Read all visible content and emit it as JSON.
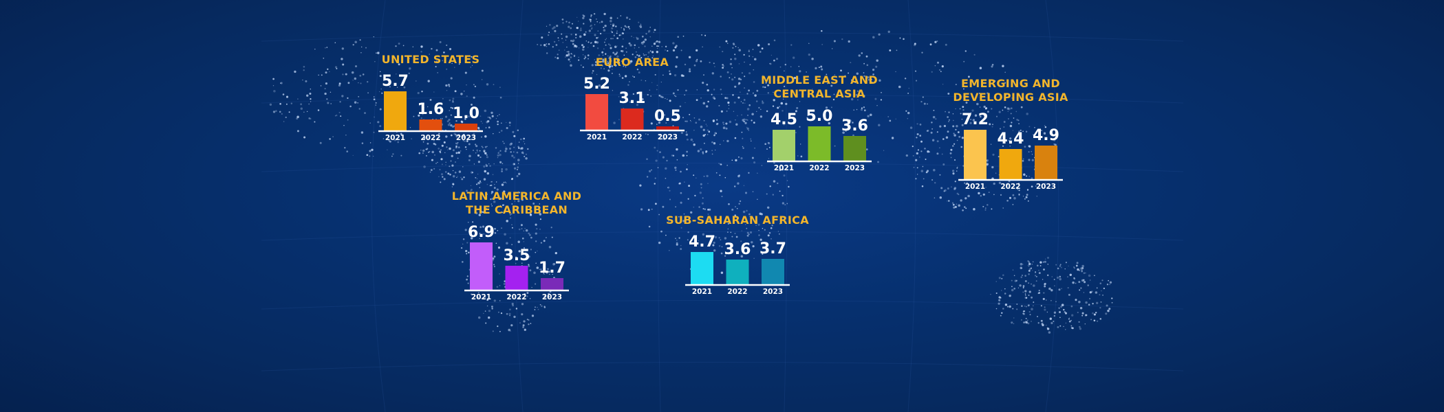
{
  "chart_data": [
    {
      "type": "bar",
      "title": [
        "UNITED STATES"
      ],
      "categories": [
        "2021",
        "2022",
        "2023"
      ],
      "values": [
        5.7,
        1.6,
        1.0
      ],
      "value_labels": [
        "5.7",
        "1.6",
        "1.0"
      ],
      "colors": [
        "#f0a80e",
        "#e34f0e",
        "#d9400d"
      ]
    },
    {
      "type": "bar",
      "title": [
        "EURO AREA"
      ],
      "categories": [
        "2021",
        "2022",
        "2023"
      ],
      "values": [
        5.2,
        3.1,
        0.5
      ],
      "value_labels": [
        "5.2",
        "3.1",
        "0.5"
      ],
      "colors": [
        "#f24b40",
        "#dc2a1e",
        "#c51a14"
      ]
    },
    {
      "type": "bar",
      "title": [
        "MIDDLE EAST AND",
        "CENTRAL ASIA"
      ],
      "categories": [
        "2021",
        "2022",
        "2023"
      ],
      "values": [
        4.5,
        5.0,
        3.6
      ],
      "value_labels": [
        "4.5",
        "5.0",
        "3.6"
      ],
      "colors": [
        "#a3d06b",
        "#7cbb29",
        "#5f8f1f"
      ]
    },
    {
      "type": "bar",
      "title": [
        "EMERGING AND",
        "DEVELOPING ASIA"
      ],
      "categories": [
        "2021",
        "2022",
        "2023"
      ],
      "values": [
        7.2,
        4.4,
        4.9
      ],
      "value_labels": [
        "7.2",
        "4.4",
        "4.9"
      ],
      "colors": [
        "#fbc44e",
        "#f0a80e",
        "#d9820e"
      ]
    },
    {
      "type": "bar",
      "title": [
        "LATIN AMERICA AND",
        "THE CARIBBEAN"
      ],
      "categories": [
        "2021",
        "2022",
        "2023"
      ],
      "values": [
        6.9,
        3.5,
        1.7
      ],
      "value_labels": [
        "6.9",
        "3.5",
        "1.7"
      ],
      "colors": [
        "#c25dfa",
        "#a421f0",
        "#7a2ab8"
      ]
    },
    {
      "type": "bar",
      "title": [
        "SUB-SAHARAN AFRICA"
      ],
      "categories": [
        "2021",
        "2022",
        "2023"
      ],
      "values": [
        4.7,
        3.6,
        3.7
      ],
      "value_labels": [
        "4.7",
        "3.6",
        "3.7"
      ],
      "colors": [
        "#1ddcf2",
        "#0fb0be",
        "#1188b0"
      ]
    }
  ],
  "theme": {
    "title_color": "#f2b52c",
    "label_color": "#ffffff",
    "background": "#062d6a"
  }
}
